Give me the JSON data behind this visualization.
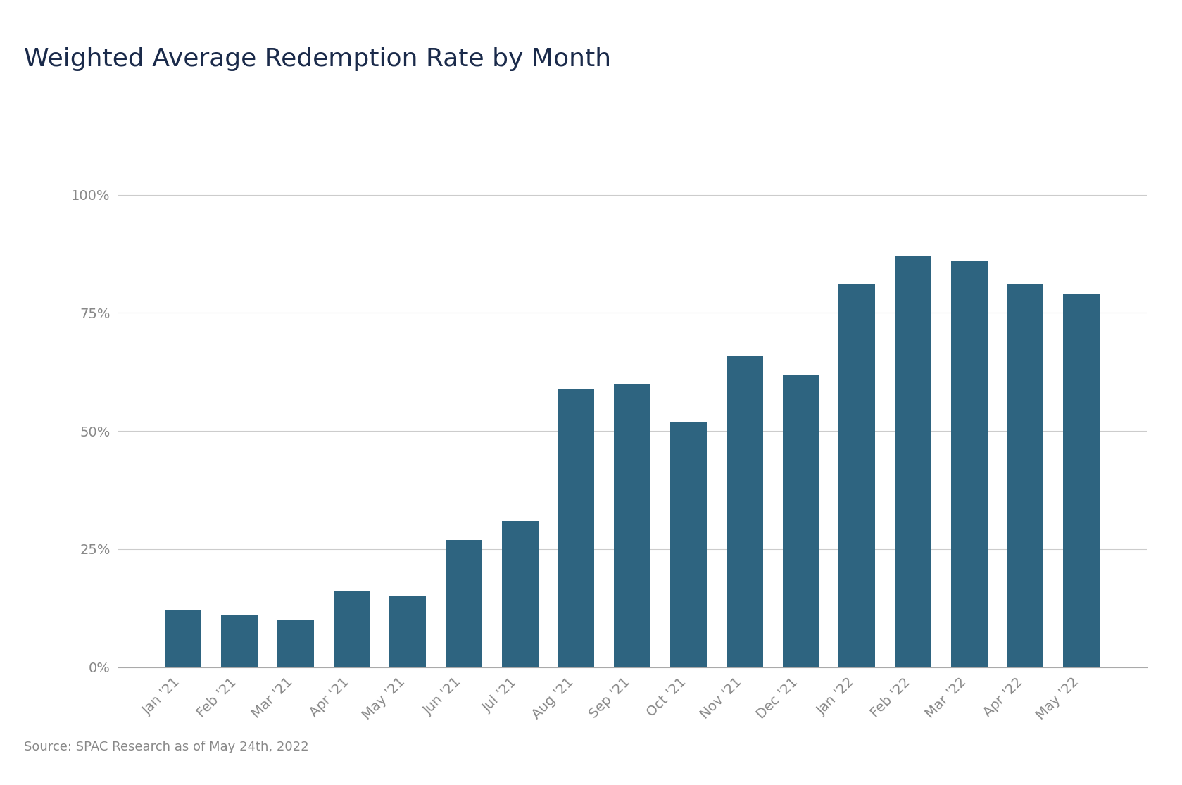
{
  "title": "Weighted Average Redemption Rate by Month",
  "categories": [
    "Jan '21",
    "Feb '21",
    "Mar '21",
    "Apr '21",
    "May '21",
    "Jun '21",
    "Jul '21",
    "Aug '21",
    "Sep '21",
    "Oct '21",
    "Nov '21",
    "Dec '21",
    "Jan '22",
    "Feb '22",
    "Mar '22",
    "Apr '22",
    "May '22"
  ],
  "values": [
    0.12,
    0.11,
    0.1,
    0.16,
    0.15,
    0.27,
    0.31,
    0.59,
    0.6,
    0.52,
    0.66,
    0.62,
    0.81,
    0.87,
    0.86,
    0.81,
    0.79
  ],
  "bar_color": "#2e6480",
  "background_color": "#ffffff",
  "title_fontsize": 26,
  "tick_fontsize": 14,
  "source_text": "Source: SPAC Research as of May 24th, 2022",
  "source_fontsize": 13,
  "yticks": [
    0.0,
    0.25,
    0.5,
    0.75,
    1.0
  ],
  "ytick_labels": [
    "0%",
    "25%",
    "50%",
    "75%",
    "100%"
  ],
  "ylim": [
    0,
    1.08
  ],
  "grid_color": "#cccccc",
  "axis_color": "#aaaaaa",
  "title_color": "#1a2a4a",
  "tick_color": "#888888"
}
